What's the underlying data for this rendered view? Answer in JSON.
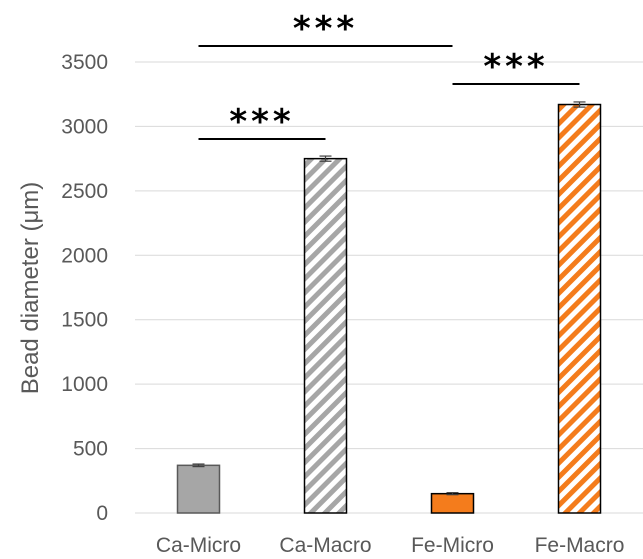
{
  "chart_data": {
    "type": "bar",
    "title": "",
    "xlabel": "",
    "ylabel": "Bead diameter (μm)",
    "ylim": [
      0,
      3500
    ],
    "yticks": [
      0,
      500,
      1000,
      1500,
      2000,
      2500,
      3000,
      3500
    ],
    "grid": true,
    "legend": "none",
    "categories": [
      "Ca-Micro",
      "Ca-Macro",
      "Fe-Micro",
      "Fe-Macro"
    ],
    "values": [
      370,
      2750,
      150,
      3170
    ],
    "errors": [
      10,
      20,
      8,
      20
    ],
    "styles": [
      {
        "fill": "solid",
        "color": "#a6a6a6",
        "edge": "#595959"
      },
      {
        "fill": "hatched",
        "color": "#a6a6a6",
        "edge": "#000000"
      },
      {
        "fill": "solid",
        "color": "#f47c1c",
        "edge": "#000000"
      },
      {
        "fill": "hatched",
        "color": "#f47c1c",
        "edge": "#000000"
      }
    ],
    "significance": [
      {
        "from": "Ca-Micro",
        "to": "Ca-Macro",
        "label": "***"
      },
      {
        "from": "Ca-Micro",
        "to": "Fe-Micro",
        "label": "***"
      },
      {
        "from": "Fe-Micro",
        "to": "Fe-Macro",
        "label": "***"
      }
    ]
  }
}
